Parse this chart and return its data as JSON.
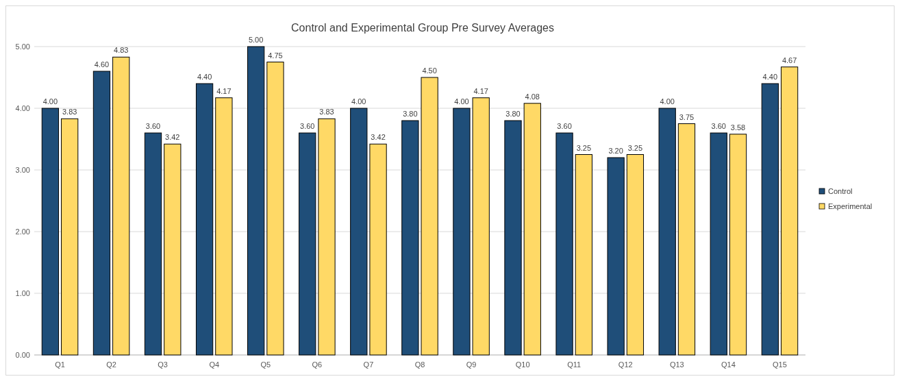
{
  "chart_data": {
    "type": "bar",
    "title": "Control and Experimental Group Pre Survey Averages",
    "categories": [
      "Q1",
      "Q2",
      "Q3",
      "Q4",
      "Q5",
      "Q6",
      "Q7",
      "Q8",
      "Q9",
      "Q10",
      "Q11",
      "Q12",
      "Q13",
      "Q14",
      "Q15"
    ],
    "series": [
      {
        "name": "Control",
        "color": "#1f4e79",
        "values": [
          4.0,
          4.6,
          3.6,
          4.4,
          5.0,
          3.6,
          4.0,
          3.8,
          4.0,
          3.8,
          3.6,
          3.2,
          4.0,
          3.6,
          4.4
        ],
        "value_labels": [
          "4.00",
          "4.60",
          "3.60",
          "4.40",
          "5.00",
          "3.60",
          "4.00",
          "3.80",
          "4.00",
          "3.80",
          "3.60",
          "3.20",
          "4.00",
          "3.60",
          "4.40"
        ]
      },
      {
        "name": "Experimental",
        "color": "#ffd966",
        "values": [
          3.83,
          4.83,
          3.42,
          4.17,
          4.75,
          3.83,
          3.42,
          4.5,
          4.17,
          4.08,
          3.25,
          3.25,
          3.75,
          3.58,
          4.67
        ],
        "value_labels": [
          "3.83",
          "4.83",
          "3.42",
          "4.17",
          "4.75",
          "3.83",
          "3.42",
          "4.50",
          "4.17",
          "4.08",
          "3.25",
          "3.25",
          "3.75",
          "3.58",
          "4.67"
        ]
      }
    ],
    "ylim": [
      0,
      5
    ],
    "yticks": [
      {
        "value": 0,
        "label": "0.00"
      },
      {
        "value": 1,
        "label": "1.00"
      },
      {
        "value": 2,
        "label": "2.00"
      },
      {
        "value": 3,
        "label": "3.00"
      },
      {
        "value": 4,
        "label": "4.00"
      },
      {
        "value": 5,
        "label": "5.00"
      }
    ],
    "grid": "y",
    "legend": "right"
  }
}
